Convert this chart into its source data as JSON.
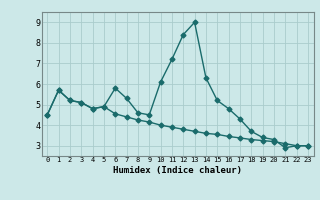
{
  "title": "",
  "xlabel": "Humidex (Indice chaleur)",
  "ylabel": "",
  "background_color": "#cce8e8",
  "grid_color": "#aacccc",
  "line_color": "#1a6b6b",
  "xlim": [
    -0.5,
    23.5
  ],
  "ylim": [
    2.5,
    9.5
  ],
  "xticks": [
    0,
    1,
    2,
    3,
    4,
    5,
    6,
    7,
    8,
    9,
    10,
    11,
    12,
    13,
    14,
    15,
    16,
    17,
    18,
    19,
    20,
    21,
    22,
    23
  ],
  "yticks": [
    3,
    4,
    5,
    6,
    7,
    8,
    9
  ],
  "series1_x": [
    0,
    1,
    2,
    3,
    4,
    5,
    6,
    7,
    8,
    9,
    10,
    11,
    12,
    13,
    14,
    15,
    16,
    17,
    18,
    19,
    20,
    21,
    22,
    23
  ],
  "series1_y": [
    4.5,
    5.7,
    5.2,
    5.1,
    4.8,
    4.9,
    5.8,
    5.3,
    4.6,
    4.5,
    6.1,
    7.2,
    8.4,
    9.0,
    6.3,
    5.2,
    4.8,
    4.3,
    3.7,
    3.4,
    3.3,
    2.9,
    3.0,
    3.0
  ],
  "series2_x": [
    0,
    1,
    2,
    3,
    4,
    5,
    6,
    7,
    8,
    9,
    10,
    11,
    12,
    13,
    14,
    15,
    16,
    17,
    18,
    19,
    20,
    21,
    22,
    23
  ],
  "series2_y": [
    4.5,
    5.7,
    5.2,
    5.1,
    4.8,
    4.9,
    4.55,
    4.4,
    4.25,
    4.15,
    4.0,
    3.9,
    3.8,
    3.7,
    3.6,
    3.55,
    3.45,
    3.38,
    3.3,
    3.25,
    3.2,
    3.1,
    3.0,
    3.0
  ]
}
